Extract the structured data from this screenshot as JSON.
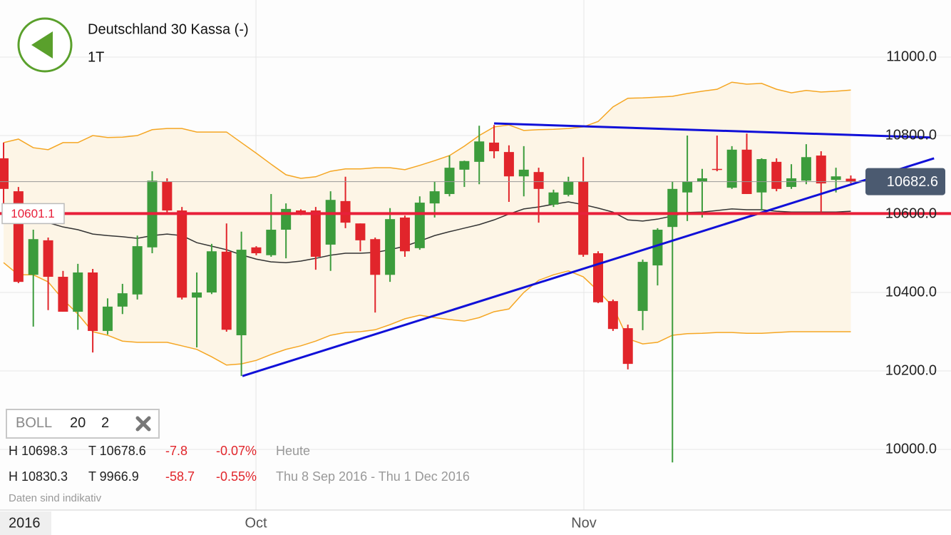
{
  "header": {
    "title": "Deutschland 30 Kassa (-)",
    "interval": "1T"
  },
  "chart_data": {
    "type": "candlestick",
    "year_label": "2016",
    "categories": [
      null,
      null,
      null,
      null,
      null,
      null,
      null,
      null,
      null,
      null,
      null,
      null,
      null,
      null,
      null,
      null,
      null,
      null,
      null,
      null,
      null,
      null,
      null,
      null,
      null,
      null,
      null,
      null,
      null,
      null,
      null,
      null,
      null,
      null,
      null,
      null,
      null,
      null,
      null,
      null,
      null,
      null,
      null,
      null,
      null,
      null,
      null,
      null,
      null,
      null,
      null,
      null,
      null,
      null,
      null,
      null,
      null,
      null
    ],
    "open": [
      10742,
      10658,
      10445,
      10533,
      10440,
      10351,
      10451,
      10302,
      10364,
      10395,
      10515,
      10682,
      10609,
      10387,
      10400,
      10504,
      10291,
      10515,
      10495,
      10560,
      10609,
      10609,
      10522,
      10633,
      10576,
      10536,
      10445,
      10591,
      10513,
      10627,
      10651,
      10713,
      10733,
      10782,
      10758,
      10696,
      10707,
      10624,
      10649,
      10682,
      10500,
      10378,
      10309,
      10353,
      10469,
      10567,
      10655,
      10682,
      10715,
      10667,
      10764,
      10655,
      10733,
      10669,
      10685,
      10749,
      10687,
      10690
    ],
    "high": [
      10782,
      10669,
      10560,
      10540,
      10455,
      10473,
      10460,
      10385,
      10422,
      10545,
      10709,
      10691,
      10618,
      10451,
      10524,
      10576,
      10555,
      10518,
      10651,
      10627,
      10612,
      10618,
      10658,
      10695,
      10576,
      10540,
      10615,
      10596,
      10645,
      10682,
      10749,
      10736,
      10825,
      10827,
      10775,
      10773,
      10718,
      10662,
      10695,
      10745,
      10505,
      10382,
      10318,
      10484,
      10564,
      10682,
      10800,
      10715,
      10800,
      10773,
      10805,
      10742,
      10742,
      10727,
      10778,
      10760,
      10718,
      10698.3
    ],
    "low": [
      10618,
      10424,
      10313,
      10355,
      10351,
      10305,
      10247,
      10293,
      10345,
      10382,
      10500,
      10600,
      10382,
      10260,
      10396,
      10300,
      10187,
      10495,
      10491,
      10487,
      10597,
      10458,
      10455,
      10564,
      10505,
      10349,
      10427,
      10491,
      10509,
      10591,
      10645,
      10669,
      10676,
      10742,
      10631,
      10645,
      10578,
      10618,
      10645,
      10491,
      10373,
      10302,
      10204,
      10304,
      10418,
      9966.9,
      10582,
      10591,
      10709,
      10664,
      10651,
      10609,
      10658,
      10664,
      10676,
      10605,
      10655,
      10678.6
    ],
    "close": [
      10664,
      10427,
      10536,
      10440,
      10351,
      10451,
      10302,
      10364,
      10398,
      10518,
      10685,
      10609,
      10387,
      10400,
      10505,
      10305,
      10509,
      10500,
      10560,
      10613,
      10600,
      10491,
      10636,
      10578,
      10533,
      10445,
      10587,
      10505,
      10629,
      10658,
      10718,
      10735,
      10785,
      10760,
      10696,
      10713,
      10664,
      10655,
      10682,
      10496,
      10375,
      10307,
      10218,
      10478,
      10560,
      10664,
      10682,
      10691,
      10713,
      10764,
      10651,
      10740,
      10664,
      10691,
      10745,
      10678,
      10696,
      10682.6
    ],
    "up_color": "#3c9c3c",
    "down_color": "#e1252b",
    "bands": {
      "upper": [
        10782,
        10791,
        10769,
        10764,
        10782,
        10782,
        10800,
        10795,
        10796,
        10800,
        10815,
        10818,
        10818,
        10809,
        10809,
        10809,
        10782,
        10755,
        10727,
        10700,
        10691,
        10695,
        10709,
        10715,
        10715,
        10718,
        10718,
        10713,
        10724,
        10736,
        10749,
        10773,
        10800,
        10822,
        10827,
        10813,
        10815,
        10816,
        10818,
        10822,
        10836,
        10873,
        10895,
        10896,
        10898,
        10900,
        10907,
        10913,
        10918,
        10936,
        10931,
        10933,
        10918,
        10909,
        10915,
        10911,
        10913,
        10916
      ],
      "middle": [
        10618,
        10600,
        10591,
        10578,
        10567,
        10560,
        10549,
        10545,
        10542,
        10538,
        10545,
        10549,
        10545,
        10527,
        10518,
        10509,
        10496,
        10485,
        10478,
        10476,
        10480,
        10487,
        10495,
        10500,
        10500,
        10502,
        10509,
        10518,
        10531,
        10545,
        10555,
        10564,
        10573,
        10585,
        10600,
        10613,
        10618,
        10625,
        10631,
        10624,
        10615,
        10605,
        10585,
        10582,
        10587,
        10595,
        10604,
        10605,
        10609,
        10613,
        10611,
        10611,
        10607,
        10605,
        10605,
        10605,
        10605,
        10607
      ],
      "lower": [
        10476,
        10445,
        10445,
        10427,
        10382,
        10345,
        10300,
        10291,
        10276,
        10273,
        10273,
        10273,
        10264,
        10255,
        10236,
        10215,
        10218,
        10227,
        10242,
        10255,
        10264,
        10276,
        10291,
        10298,
        10300,
        10305,
        10318,
        10333,
        10342,
        10336,
        10331,
        10327,
        10336,
        10351,
        10358,
        10400,
        10431,
        10445,
        10455,
        10440,
        10404,
        10364,
        10282,
        10269,
        10273,
        10291,
        10295,
        10296,
        10298,
        10298,
        10296,
        10296,
        10298,
        10300,
        10300,
        10300,
        10300,
        10300
      ],
      "band_color": "#f5a623",
      "middle_color": "#333333",
      "fill": "#fdf5e6"
    },
    "trendlines": [
      {
        "x": [
          16.07,
          62.6
        ],
        "y": [
          10187,
          10742
        ],
        "color": "#1010d8"
      },
      {
        "x": [
          33.0,
          62.35
        ],
        "y": [
          10831,
          10795
        ],
        "color": "#1010d8"
      }
    ],
    "reference_line": {
      "value": 10601.1,
      "color": "#e8203a"
    },
    "last_price": 10682.6,
    "xlim": [
      -0.24,
      63.74
    ],
    "xticks": [
      {
        "value": 16.98,
        "label": "Oct"
      },
      {
        "value": 39.04,
        "label": "Nov"
      }
    ],
    "ylim": [
      9845.5,
      11145.5
    ],
    "yticks": [
      {
        "value": 10000,
        "label": "10000.0"
      },
      {
        "value": 10200,
        "label": "10200.0"
      },
      {
        "value": 10400,
        "label": "10400.0"
      },
      {
        "value": 10600,
        "label": "10600.0"
      },
      {
        "value": 10800,
        "label": "10800.0"
      },
      {
        "value": 11000,
        "label": "11000.0"
      }
    ],
    "grid": true
  },
  "indicator": {
    "name": "BOLL",
    "period": "20",
    "deviation": "2"
  },
  "stats": [
    {
      "high": "H 10698.3",
      "low": "T 10678.6",
      "change": "-7.8",
      "change_pct": "-0.07%",
      "period": "Heute"
    },
    {
      "high": "H 10830.3",
      "low": "T 9966.9",
      "change": "-58.7",
      "change_pct": "-0.55%",
      "period": "Thu 8 Sep 2016 - Thu 1 Dec 2016"
    }
  ],
  "disclaimer": "Daten sind indikativ"
}
